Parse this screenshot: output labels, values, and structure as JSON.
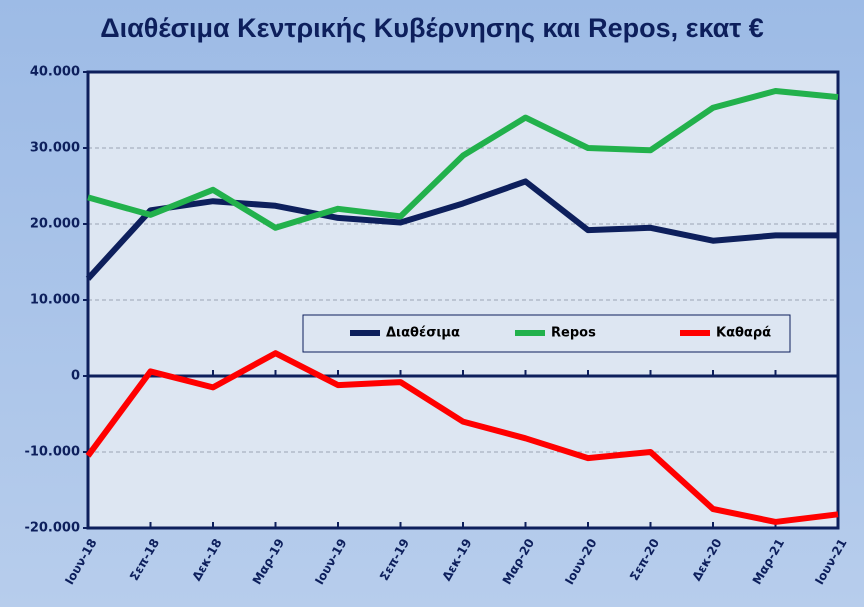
{
  "chart_data": {
    "type": "line",
    "title": "Διαθέσιμα Κεντρικής Κυβέρνησης και Repos, εκατ €",
    "categories": [
      "Ιουν-18",
      "Σεπ-18",
      "Δεκ-18",
      "Μαρ-19",
      "Ιουν-19",
      "Σεπ-19",
      "Δεκ-19",
      "Μαρ-20",
      "Ιουν-20",
      "Σεπ-20",
      "Δεκ-20",
      "Μαρ-21",
      "Ιουν-21"
    ],
    "series": [
      {
        "name": "Διαθέσιμα",
        "color": "#0d1f5c",
        "values": [
          12800,
          21800,
          23000,
          22400,
          20800,
          20200,
          22700,
          25600,
          19200,
          19500,
          17800,
          18500,
          18500
        ]
      },
      {
        "name": "Repos",
        "color": "#22b14c",
        "values": [
          23500,
          21200,
          24500,
          19500,
          22000,
          21000,
          29000,
          34000,
          30000,
          29700,
          35300,
          37500,
          36700
        ]
      },
      {
        "name": "Καθαρά",
        "color": "#ff0000",
        "values": [
          -10500,
          600,
          -1500,
          3000,
          -1200,
          -800,
          -6000,
          -8200,
          -10800,
          -10000,
          -17500,
          -19200,
          -18200
        ]
      }
    ],
    "ylim": [
      -20000,
      40000
    ],
    "yticks": [
      {
        "value": -20000,
        "label": "-20.000"
      },
      {
        "value": -10000,
        "label": "-10.000"
      },
      0,
      {
        "value": 10000,
        "label": "10.000"
      },
      {
        "value": 20000,
        "label": "20.000"
      },
      {
        "value": 30000,
        "label": "30.000"
      },
      {
        "value": 40000,
        "label": "40.000"
      }
    ],
    "grid": true
  }
}
